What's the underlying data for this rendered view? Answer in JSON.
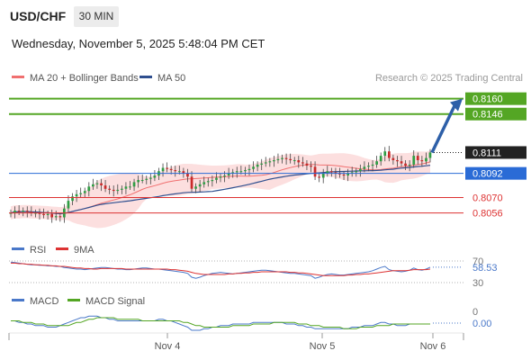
{
  "header": {
    "symbol": "USD/CHF",
    "timeframe": "30 MIN",
    "datetime": "Wednesday, November 5, 2025 5:48:04 PM CET"
  },
  "chart_data": [
    {
      "type": "line",
      "panel": "price",
      "attribution": "Research © 2025 Trading Central",
      "legend": [
        {
          "name": "MA 20 + Bollinger Bands",
          "color": "#f07070"
        },
        {
          "name": "MA 50",
          "color": "#2f4f8f"
        }
      ],
      "ylim": [
        0.8045,
        0.8172
      ],
      "x_ticks": [
        "Nov 4",
        "Nov 5",
        "Nov 6"
      ],
      "horizontal_levels": [
        {
          "label": "0.8160",
          "value": 0.816,
          "color": "#54a624",
          "type": "target"
        },
        {
          "label": "0.8146",
          "value": 0.8146,
          "color": "#54a624",
          "type": "resistance"
        },
        {
          "label": "0.8111",
          "value": 0.8111,
          "color": "#222222",
          "type": "last-price"
        },
        {
          "label": "0.8092",
          "value": 0.8092,
          "color": "#2a6bd6",
          "type": "pivot"
        },
        {
          "label": "0.8070",
          "value": 0.807,
          "color": "#dd3333",
          "type": "support"
        },
        {
          "label": "0.8056",
          "value": 0.8056,
          "color": "#dd3333",
          "type": "support"
        }
      ],
      "closes": [
        0.8056,
        0.8058,
        0.8057,
        0.8058,
        0.8057,
        0.8056,
        0.8056,
        0.8055,
        0.8054,
        0.8055,
        0.8052,
        0.8053,
        0.8052,
        0.806,
        0.8067,
        0.8071,
        0.8073,
        0.8074,
        0.8076,
        0.808,
        0.8082,
        0.8083,
        0.8081,
        0.8078,
        0.8077,
        0.8076,
        0.8077,
        0.8078,
        0.808,
        0.808,
        0.8084,
        0.8086,
        0.8086,
        0.8087,
        0.8088,
        0.809,
        0.8094,
        0.8097,
        0.8096,
        0.8095,
        0.8094,
        0.8094,
        0.8092,
        0.8089,
        0.8078,
        0.808,
        0.8082,
        0.8084,
        0.8085,
        0.8086,
        0.8088,
        0.8089,
        0.809,
        0.8092,
        0.8093,
        0.8094,
        0.8094,
        0.8095,
        0.8096,
        0.8098,
        0.81,
        0.8101,
        0.8102,
        0.8103,
        0.8104,
        0.8105,
        0.8106,
        0.8105,
        0.8104,
        0.8104,
        0.8102,
        0.8101,
        0.8099,
        0.8098,
        0.8089,
        0.8088,
        0.8092,
        0.8094,
        0.8093,
        0.8092,
        0.8091,
        0.809,
        0.8092,
        0.8093,
        0.8094,
        0.8096,
        0.8098,
        0.8099,
        0.81,
        0.8103,
        0.8108,
        0.8112,
        0.8106,
        0.8104,
        0.8103,
        0.8101,
        0.8099,
        0.81,
        0.8108,
        0.8104,
        0.8103,
        0.8106,
        0.8111
      ],
      "projection": {
        "from": 0.8111,
        "to": 0.816
      }
    },
    {
      "type": "line",
      "panel": "RSI",
      "legend": [
        {
          "name": "RSI",
          "color": "#4a78c9"
        },
        {
          "name": "9MA",
          "color": "#dd3333"
        }
      ],
      "ylim": [
        25,
        75
      ],
      "ticks": [
        "70",
        "30"
      ],
      "last_label": "58.53",
      "last_value": 58.53,
      "rsi": [
        68,
        67,
        66,
        65,
        64,
        63,
        63,
        62,
        62,
        61,
        61,
        60,
        60,
        58,
        57,
        56,
        55,
        55,
        54,
        55,
        56,
        57,
        58,
        58,
        57,
        56,
        55,
        55,
        54,
        54,
        55,
        56,
        57,
        57,
        56,
        55,
        55,
        54,
        53,
        52,
        51,
        50,
        49,
        47,
        40,
        38,
        40,
        43,
        45,
        47,
        48,
        49,
        48,
        47,
        46,
        47,
        48,
        49,
        50,
        51,
        52,
        53,
        53,
        52,
        51,
        50,
        49,
        48,
        47,
        47,
        46,
        45,
        44,
        43,
        38,
        40,
        43,
        45,
        46,
        45,
        44,
        44,
        45,
        46,
        47,
        48,
        49,
        50,
        52,
        55,
        58,
        60,
        54,
        52,
        51,
        50,
        51,
        53,
        57,
        54,
        53,
        55,
        58.53
      ],
      "ma": [
        66,
        66,
        65,
        65,
        64,
        64,
        63,
        63,
        62,
        62,
        61,
        61,
        60,
        60,
        59,
        58,
        57,
        57,
        56,
        56,
        55,
        55,
        56,
        56,
        56,
        56,
        56,
        56,
        55,
        55,
        55,
        55,
        55,
        55,
        55,
        55,
        55,
        55,
        55,
        54,
        54,
        53,
        52,
        51,
        49,
        47,
        46,
        45,
        45,
        45,
        45,
        45,
        45,
        46,
        46,
        47,
        47,
        48,
        48,
        49,
        49,
        50,
        50,
        50,
        50,
        50,
        50,
        50,
        49,
        49,
        48,
        48,
        47,
        46,
        45,
        44,
        43,
        43,
        43,
        43,
        43,
        43,
        44,
        44,
        45,
        45,
        46,
        46,
        47,
        48,
        49,
        50,
        51,
        52,
        52,
        52,
        52,
        53,
        54,
        54,
        54,
        54,
        55
      ]
    },
    {
      "type": "line",
      "panel": "MACD",
      "legend": [
        {
          "name": "MACD",
          "color": "#4a78c9"
        },
        {
          "name": "MACD Signal",
          "color": "#54a624"
        }
      ],
      "ylim": [
        -0.0008,
        0.0008
      ],
      "ticks": [
        "0"
      ],
      "last_label": "0.00",
      "last_value": 0.0,
      "macd": [
        0.0002,
        0.0002,
        0.0001,
        0.0001,
        0.0,
        0.0,
        -0.0001,
        -0.0001,
        -0.0001,
        -0.0002,
        -0.0002,
        -0.0002,
        -0.0001,
        0.0,
        0.0001,
        0.0002,
        0.0003,
        0.0004,
        0.0004,
        0.0005,
        0.0005,
        0.0005,
        0.0004,
        0.0004,
        0.0003,
        0.0003,
        0.0002,
        0.0002,
        0.0002,
        0.0002,
        0.0002,
        0.0002,
        0.0002,
        0.0002,
        0.0002,
        0.0002,
        0.0003,
        0.0003,
        0.0002,
        0.0002,
        0.0001,
        0.0,
        -0.0001,
        -0.0002,
        -0.0004,
        -0.0004,
        -0.0004,
        -0.0003,
        -0.0003,
        -0.0002,
        -0.0002,
        -0.0001,
        -0.0001,
        -0.0001,
        0.0,
        0.0,
        0.0,
        0.0,
        0.0,
        0.0001,
        0.0001,
        0.0001,
        0.0001,
        0.0001,
        0.0001,
        0.0001,
        0.0001,
        0.0,
        0.0,
        0.0,
        -0.0001,
        -0.0001,
        -0.0002,
        -0.0002,
        -0.0003,
        -0.0003,
        -0.0003,
        -0.0003,
        -0.0003,
        -0.0003,
        -0.0003,
        -0.0003,
        -0.0003,
        -0.0002,
        -0.0002,
        -0.0002,
        -0.0001,
        -0.0001,
        -0.0001,
        0.0,
        0.0001,
        0.0001,
        0.0,
        0.0,
        -0.0001,
        -0.0001,
        -0.0001,
        0.0,
        0.0,
        0.0,
        0.0,
        0.0,
        0.0
      ],
      "signal": [
        0.0002,
        0.0002,
        0.0002,
        0.0001,
        0.0001,
        0.0001,
        0.0,
        0.0,
        0.0,
        -0.0001,
        -0.0001,
        -0.0001,
        -0.0001,
        -0.0001,
        -0.0001,
        0.0,
        0.0001,
        0.0001,
        0.0002,
        0.0003,
        0.0003,
        0.0004,
        0.0004,
        0.0004,
        0.0004,
        0.0004,
        0.0003,
        0.0003,
        0.0003,
        0.0003,
        0.0003,
        0.0003,
        0.0002,
        0.0002,
        0.0002,
        0.0002,
        0.0002,
        0.0002,
        0.0002,
        0.0002,
        0.0002,
        0.0002,
        0.0001,
        0.0001,
        0.0,
        -0.0001,
        -0.0001,
        -0.0002,
        -0.0002,
        -0.0002,
        -0.0002,
        -0.0002,
        -0.0002,
        -0.0002,
        -0.0001,
        -0.0001,
        -0.0001,
        -0.0001,
        -0.0001,
        0.0,
        0.0,
        0.0,
        0.0,
        0.0,
        0.0001,
        0.0001,
        0.0001,
        0.0001,
        0.0001,
        0.0001,
        0.0,
        0.0,
        0.0,
        -0.0001,
        -0.0001,
        -0.0001,
        -0.0002,
        -0.0002,
        -0.0002,
        -0.0002,
        -0.0002,
        -0.0003,
        -0.0003,
        -0.0003,
        -0.0003,
        -0.0002,
        -0.0002,
        -0.0002,
        -0.0002,
        -0.0001,
        -0.0001,
        -0.0001,
        -0.0001,
        0.0,
        0.0,
        0.0,
        0.0,
        0.0,
        0.0,
        0.0,
        0.0,
        0.0,
        0.0
      ]
    }
  ]
}
